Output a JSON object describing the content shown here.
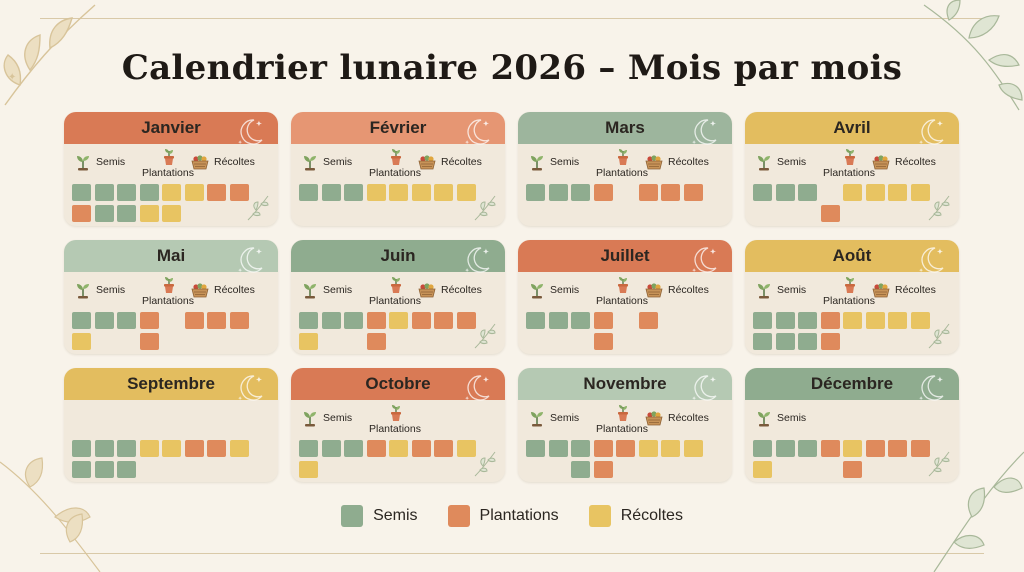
{
  "title": "Calendrier lunaire 2026 – Mois par mois",
  "labels": {
    "semis": "Semis",
    "plantations": "Plantations",
    "recoltes": "Récoltes"
  },
  "colors": {
    "semis": "#8fac8f",
    "plantations": "#df8a5c",
    "recoltes": "#e8c462",
    "background": "#f8f3ea",
    "card": "#f1e9dc"
  },
  "icons": {
    "semis": "seedling-icon",
    "plantations": "potted-plant-icon",
    "recoltes": "harvest-basket-icon",
    "moon": "crescent-moon-icon"
  },
  "months": [
    {
      "name": "Janvier",
      "color": "#d97a55",
      "icons": [
        "semis",
        "plantations",
        "recoltes"
      ],
      "cells": [
        "s",
        "s",
        "s",
        "s",
        "r",
        "r",
        "p",
        "p",
        "p",
        "s",
        "s",
        "r",
        "r"
      ]
    },
    {
      "name": "Février",
      "color": "#e69673",
      "icons": [
        "semis",
        "plantations",
        "recoltes"
      ],
      "cells": [
        "s",
        "s",
        "s",
        "r",
        "r",
        "r",
        "r",
        "r"
      ]
    },
    {
      "name": "Mars",
      "color": "#9db59d",
      "icons": [
        "semis",
        "plantations",
        "recoltes"
      ],
      "cells": [
        "s",
        "s",
        "s",
        "p",
        "",
        "p",
        "p",
        "p"
      ]
    },
    {
      "name": "Avril",
      "color": "#e3bd5f",
      "icons": [
        "semis",
        "plantations",
        "recoltes"
      ],
      "cells": [
        "s",
        "s",
        "s",
        "",
        "r",
        "r",
        "r",
        "r",
        "",
        "",
        "",
        "p"
      ]
    },
    {
      "name": "Mai",
      "color": "#b5c9b3",
      "icons": [
        "semis",
        "plantations",
        "recoltes"
      ],
      "cells": [
        "s",
        "s",
        "s",
        "p",
        "",
        "p",
        "p",
        "p",
        "r",
        "",
        "",
        "p"
      ]
    },
    {
      "name": "Juin",
      "color": "#8fac8f",
      "icons": [
        "semis",
        "plantations",
        "recoltes"
      ],
      "cells": [
        "s",
        "s",
        "s",
        "p",
        "r",
        "p",
        "p",
        "p",
        "r",
        "",
        "",
        "p"
      ]
    },
    {
      "name": "Juillet",
      "color": "#d97a55",
      "icons": [
        "semis",
        "plantations",
        "recoltes"
      ],
      "cells": [
        "s",
        "s",
        "s",
        "p",
        "",
        "p",
        "",
        "",
        "",
        "",
        "",
        "p"
      ]
    },
    {
      "name": "Août",
      "color": "#e3bd5f",
      "icons": [
        "semis",
        "plantations",
        "recoltes"
      ],
      "cells": [
        "s",
        "s",
        "s",
        "p",
        "r",
        "r",
        "r",
        "r",
        "s",
        "s",
        "s",
        "p"
      ]
    },
    {
      "name": "Septembre",
      "color": "#e3bd5f",
      "icons": [],
      "cells": [
        "s",
        "s",
        "s",
        "r",
        "r",
        "p",
        "p",
        "r",
        "s",
        "s",
        "s"
      ]
    },
    {
      "name": "Octobre",
      "color": "#d97a55",
      "icons": [
        "semis",
        "plantations"
      ],
      "cells": [
        "s",
        "s",
        "s",
        "p",
        "r",
        "p",
        "p",
        "r",
        "r"
      ]
    },
    {
      "name": "Novembre",
      "color": "#b5c9b3",
      "icons": [
        "semis",
        "plantations",
        "recoltes"
      ],
      "cells": [
        "s",
        "s",
        "s",
        "p",
        "p",
        "r",
        "r",
        "r",
        "",
        "",
        "s",
        "p"
      ]
    },
    {
      "name": "Décembre",
      "color": "#8fac8f",
      "icons": [
        "semis"
      ],
      "cells": [
        "s",
        "s",
        "s",
        "p",
        "r",
        "p",
        "p",
        "p",
        "r",
        "",
        "",
        "",
        "p"
      ]
    }
  ],
  "legend": [
    {
      "key": "semis",
      "label": "Semis"
    },
    {
      "key": "plantations",
      "label": "Plantations"
    },
    {
      "key": "recoltes",
      "label": "Récoltes"
    }
  ]
}
